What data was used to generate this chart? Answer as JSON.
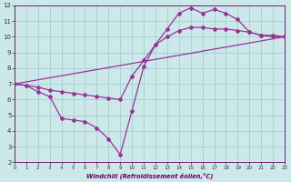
{
  "line1_x": [
    0,
    1,
    2,
    3,
    4,
    5,
    6,
    7,
    8,
    9,
    10,
    11,
    12,
    13,
    14,
    15,
    16,
    17,
    18,
    19,
    20,
    21,
    22,
    23
  ],
  "line1_y": [
    7.0,
    6.9,
    6.5,
    6.2,
    4.8,
    4.7,
    4.6,
    4.2,
    3.5,
    2.5,
    5.3,
    8.1,
    9.5,
    10.5,
    11.5,
    11.85,
    11.5,
    11.75,
    11.5,
    11.1,
    10.3,
    10.1,
    10.1,
    10.0
  ],
  "line2_x": [
    0,
    1,
    2,
    3,
    4,
    5,
    6,
    7,
    8,
    9,
    10,
    11,
    12,
    13,
    14,
    15,
    16,
    17,
    18,
    19,
    20,
    21,
    22,
    23
  ],
  "line2_y": [
    7.0,
    6.9,
    6.8,
    6.6,
    6.5,
    6.4,
    6.3,
    6.2,
    6.1,
    6.0,
    7.5,
    8.5,
    9.5,
    10.0,
    10.4,
    10.6,
    10.6,
    10.5,
    10.5,
    10.4,
    10.3,
    10.1,
    10.0,
    10.0
  ],
  "line3_x": [
    0,
    23
  ],
  "line3_y": [
    7.0,
    10.0
  ],
  "xlabel": "Windchill (Refroidissement éolien,°C)",
  "xlim": [
    0,
    23
  ],
  "ylim": [
    2,
    12
  ],
  "xticks": [
    0,
    1,
    2,
    3,
    4,
    5,
    6,
    7,
    8,
    9,
    10,
    11,
    12,
    13,
    14,
    15,
    16,
    17,
    18,
    19,
    20,
    21,
    22,
    23
  ],
  "yticks": [
    2,
    3,
    4,
    5,
    6,
    7,
    8,
    9,
    10,
    11,
    12
  ],
  "line_color": "#993399",
  "bg_color": "#cce8e8",
  "grid_color": "#99cccc"
}
